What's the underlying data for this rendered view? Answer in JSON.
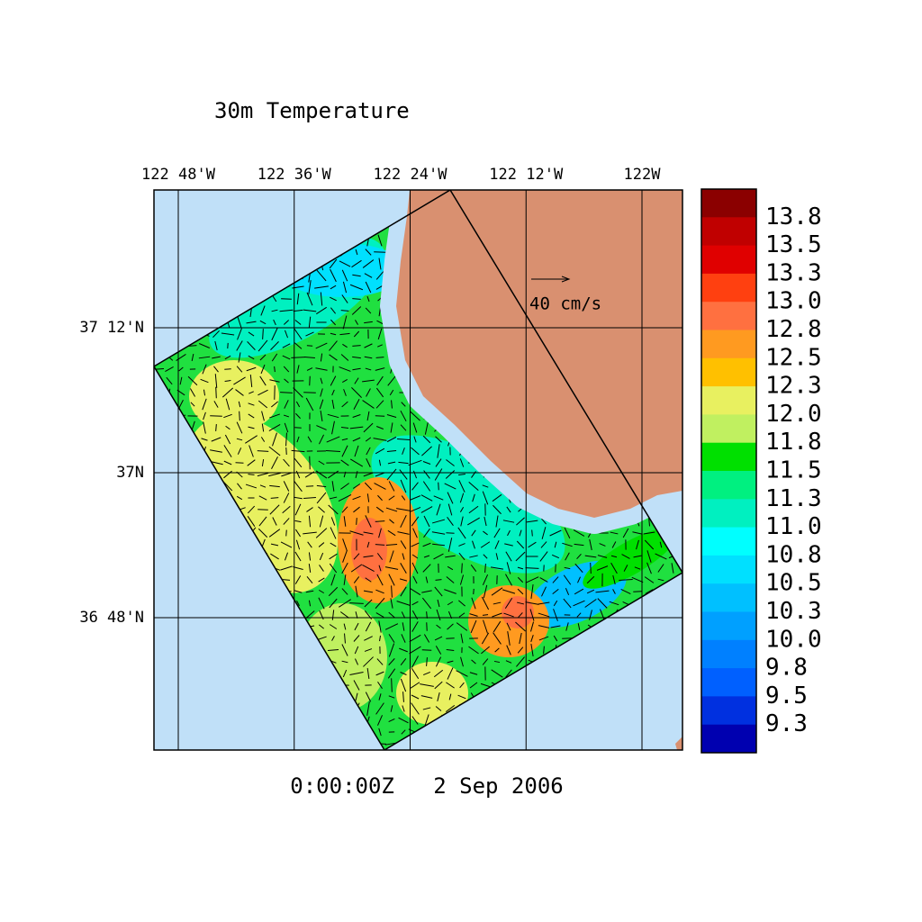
{
  "title": "30m Temperature",
  "lon_labels": [
    "122 48'W",
    "122 36'W",
    "122 24'W",
    "122 12'W",
    "122W"
  ],
  "lat_labels": [
    "37 12'N",
    "37N",
    "36 48'N"
  ],
  "scale_label": "40 cm/s",
  "timestamp": "0:00:00Z   2 Sep 2006",
  "colorbar": {
    "labels": [
      "13.8",
      "13.5",
      "13.3",
      "13.0",
      "12.8",
      "12.5",
      "12.3",
      "12.0",
      "11.8",
      "11.5",
      "11.3",
      "11.0",
      "10.8",
      "10.5",
      "10.3",
      "10.0",
      "9.8",
      "9.5",
      "9.3"
    ],
    "colors": [
      "#8b0000",
      "#c00000",
      "#e00000",
      "#ff4010",
      "#ff7040",
      "#ff9a20",
      "#ffc000",
      "#e8f060",
      "#c0f060",
      "#00e000",
      "#00f080",
      "#00f0c0",
      "#00ffff",
      "#00e0ff",
      "#00c0ff",
      "#00a0ff",
      "#0080ff",
      "#0060ff",
      "#0030e0",
      "#0000b0"
    ]
  }
}
